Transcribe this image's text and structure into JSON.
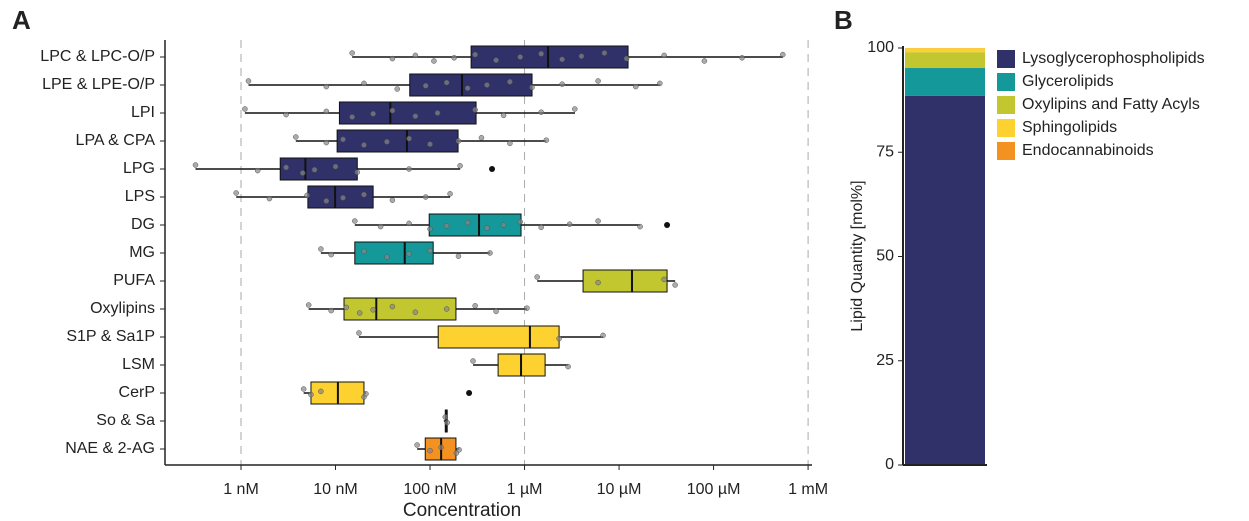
{
  "chart_data": [
    {
      "type": "boxplot",
      "panel_label": "A",
      "x_label": "Concentration",
      "log_scale": true,
      "categories": [
        "LPC & LPC-O/P",
        "LPE & LPE-O/P",
        "LPI",
        "LPA & CPA",
        "LPG",
        "LPS",
        "DG",
        "MG",
        "PUFA",
        "Oxylipins",
        "S1P & Sa1P",
        "LSM",
        "CerP",
        "So & Sa",
        "NAE & 2-AG"
      ],
      "colors": [
        "#2f3168",
        "#2f3168",
        "#2f3168",
        "#2f3168",
        "#2f3168",
        "#2f3168",
        "#14989a",
        "#14989a",
        "#c2c62f",
        "#c2c62f",
        "#fcd130",
        "#fcd130",
        "#fcd130",
        "#fcd130",
        "#f39121"
      ],
      "boxes": [
        {
          "low": 15,
          "q1": 272,
          "median": 1774,
          "q3": 12450,
          "high": 543000,
          "outliers": [],
          "points": [
            15,
            40,
            70,
            110,
            180,
            300,
            500,
            900,
            1500,
            2500,
            4000,
            7000,
            12000,
            30000,
            80000,
            200000,
            540000
          ]
        },
        {
          "low": 1.2,
          "q1": 61,
          "median": 218,
          "q3": 1200,
          "high": 27200,
          "outliers": [],
          "points": [
            1.2,
            8,
            20,
            45,
            90,
            150,
            250,
            400,
            700,
            1200,
            2500,
            6000,
            15000,
            27000
          ]
        },
        {
          "low": 1.1,
          "q1": 11,
          "median": 38,
          "q3": 307,
          "high": 3420,
          "outliers": [],
          "points": [
            1.1,
            3,
            8,
            15,
            25,
            40,
            70,
            120,
            300,
            600,
            1500,
            3400
          ]
        },
        {
          "low": 3.8,
          "q1": 10.4,
          "median": 57,
          "q3": 198,
          "high": 1690,
          "outliers": [],
          "points": [
            3.8,
            8,
            12,
            20,
            35,
            60,
            100,
            200,
            350,
            700,
            1700
          ]
        },
        {
          "low": 0.33,
          "q1": 2.6,
          "median": 4.8,
          "q3": 17,
          "high": 208,
          "outliers": [
            453
          ],
          "points": [
            0.33,
            1.5,
            3,
            4.5,
            6,
            10,
            17,
            60,
            208
          ]
        },
        {
          "low": 0.89,
          "q1": 5.1,
          "median": 9.9,
          "q3": 25,
          "high": 163,
          "outliers": [],
          "points": [
            0.89,
            2,
            5,
            8,
            12,
            20,
            40,
            90,
            163
          ]
        },
        {
          "low": 16,
          "q1": 98,
          "median": 330,
          "q3": 918,
          "high": 16700,
          "outliers": [
            32200
          ],
          "points": [
            16,
            30,
            60,
            100,
            150,
            250,
            400,
            600,
            900,
            1500,
            3000,
            6000,
            16700
          ]
        },
        {
          "low": 7,
          "q1": 16,
          "median": 54,
          "q3": 108,
          "high": 431,
          "outliers": [],
          "points": [
            7,
            9,
            20,
            35,
            60,
            100,
            200,
            431
          ]
        },
        {
          "low": 1360,
          "q1": 4160,
          "median": 13700,
          "q3": 32200,
          "high": 39200,
          "outliers": [],
          "points": [
            1360,
            6000,
            30000,
            39200
          ]
        },
        {
          "low": 5.2,
          "q1": 12.3,
          "median": 27,
          "q3": 188,
          "high": 1060,
          "outliers": [],
          "points": [
            5.2,
            9,
            13,
            18,
            25,
            40,
            70,
            150,
            300,
            500,
            1060
          ]
        },
        {
          "low": 17.7,
          "q1": 122,
          "median": 1140,
          "q3": 2320,
          "high": 6770,
          "outliers": [],
          "points": [
            17.7,
            2320,
            6770
          ]
        },
        {
          "low": 285,
          "q1": 525,
          "median": 918,
          "q3": 1650,
          "high": 2890,
          "outliers": [],
          "points": [
            285,
            2890
          ]
        },
        {
          "low": 4.6,
          "q1": 5.5,
          "median": 10.6,
          "q3": 20,
          "high": 21,
          "outliers": [
            259
          ],
          "points": [
            4.6,
            5.5,
            7,
            20,
            21
          ]
        },
        {
          "low": 140,
          "q1": 145,
          "median": 148,
          "q3": 152,
          "high": 155,
          "outliers": [],
          "points": [
            145,
            152
          ]
        },
        {
          "low": 73,
          "q1": 89,
          "median": 131,
          "q3": 188,
          "high": 203,
          "outliers": [],
          "points": [
            73,
            100,
            131,
            190,
            203
          ]
        }
      ],
      "xlim": [
        0.157,
        1100000
      ],
      "xticks": [
        {
          "value": 1,
          "label": "1 nM"
        },
        {
          "value": 10,
          "label": "10 nM"
        },
        {
          "value": 100,
          "label": "100 nM"
        },
        {
          "value": 1000,
          "label": "1 µM"
        },
        {
          "value": 10000,
          "label": "10 µM"
        },
        {
          "value": 100000,
          "label": "100 µM"
        },
        {
          "value": 1000000,
          "label": "1 mM"
        }
      ],
      "gridlines": [
        1,
        1000,
        1000000
      ]
    },
    {
      "type": "stacked_bar",
      "panel_label": "B",
      "y_label": "Lipid Quantity [mol%]",
      "series": [
        {
          "name": "Lysoglycerophospholipids",
          "color": "#2f3168",
          "values": [
            88.5
          ]
        },
        {
          "name": "Glycerolipids",
          "color": "#14989a",
          "values": [
            6.7
          ]
        },
        {
          "name": "Oxylipins and Fatty Acyls",
          "color": "#c2c62f",
          "values": [
            3.8
          ]
        },
        {
          "name": "Sphingolipids",
          "color": "#fcd130",
          "values": [
            0.95
          ]
        },
        {
          "name": "Endocannabinoids",
          "color": "#f39121",
          "values": [
            0.05
          ]
        }
      ],
      "ylim": [
        0,
        100
      ],
      "yticks": [
        0,
        25,
        50,
        75,
        100
      ]
    }
  ]
}
